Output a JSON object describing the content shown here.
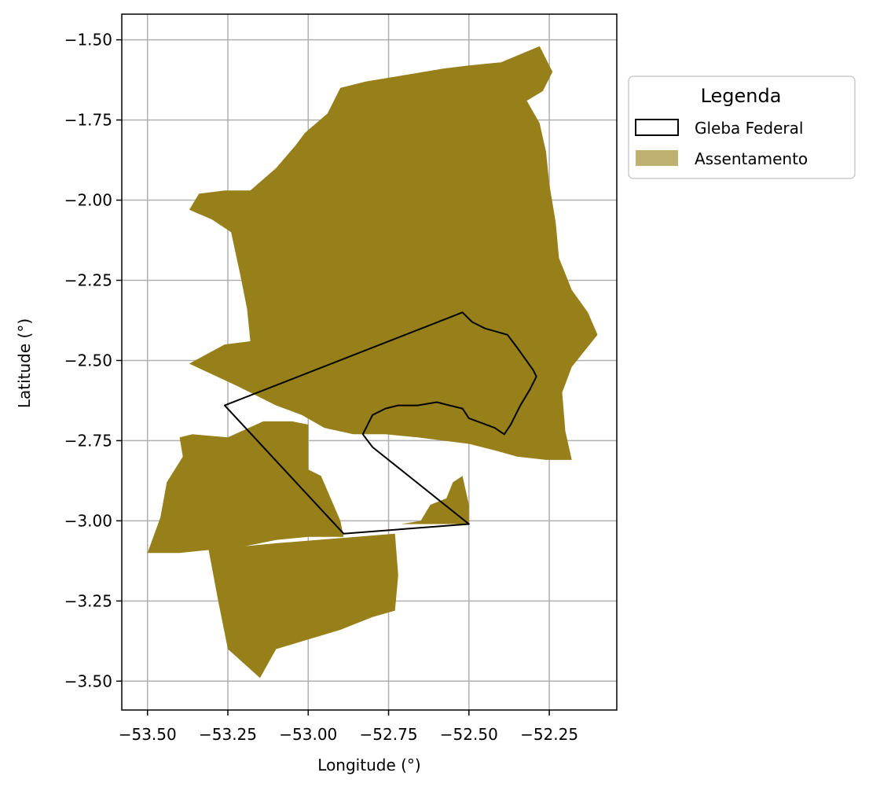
{
  "chart_data": {
    "type": "map",
    "xlabel": "Longitude (°)",
    "ylabel": "Latitude (°)",
    "xlim": [
      -53.58,
      -52.04
    ],
    "ylim": [
      -3.59,
      -1.42
    ],
    "x_ticks": [
      -53.5,
      -53.25,
      -53.0,
      -52.75,
      -52.5,
      -52.25
    ],
    "x_tick_labels": [
      "−53.50",
      "−53.25",
      "−53.00",
      "−52.75",
      "−52.50",
      "−52.25"
    ],
    "y_ticks": [
      -1.5,
      -1.75,
      -2.0,
      -2.25,
      -2.5,
      -2.75,
      -3.0,
      -3.25,
      -3.5
    ],
    "y_tick_labels": [
      "−1.50",
      "−1.75",
      "−2.00",
      "−2.25",
      "−2.50",
      "−2.75",
      "−3.00",
      "−3.25",
      "−3.50"
    ],
    "grid": true,
    "legend": {
      "title": "Legenda",
      "placement": "outside upper-right",
      "entries": [
        {
          "label": "Gleba Federal",
          "style": "outline",
          "color": "#000000"
        },
        {
          "label": "Assentamento",
          "style": "fill",
          "color": "#bfb16f"
        }
      ]
    },
    "colors": {
      "assentamento_fill": "#977f19",
      "gleba_outline": "#000000",
      "grid": "#b0b0b0",
      "legend_swatch": "#bfb16f"
    },
    "layers": {
      "assentamento": [
        [
          [
            -53.37,
            -2.51
          ],
          [
            -53.26,
            -2.45
          ],
          [
            -53.18,
            -2.44
          ],
          [
            -53.19,
            -2.34
          ],
          [
            -53.21,
            -2.24
          ],
          [
            -53.24,
            -2.1
          ],
          [
            -53.3,
            -2.06
          ],
          [
            -53.37,
            -2.03
          ],
          [
            -53.34,
            -1.98
          ],
          [
            -53.26,
            -1.97
          ],
          [
            -53.18,
            -1.97
          ],
          [
            -53.1,
            -1.9
          ],
          [
            -53.04,
            -1.83
          ],
          [
            -53.01,
            -1.79
          ],
          [
            -52.94,
            -1.73
          ],
          [
            -52.9,
            -1.65
          ],
          [
            -52.82,
            -1.63
          ],
          [
            -52.7,
            -1.61
          ],
          [
            -52.58,
            -1.59
          ],
          [
            -52.5,
            -1.58
          ],
          [
            -52.4,
            -1.57
          ],
          [
            -52.28,
            -1.52
          ],
          [
            -52.24,
            -1.6
          ],
          [
            -52.27,
            -1.66
          ],
          [
            -52.32,
            -1.69
          ],
          [
            -52.28,
            -1.76
          ],
          [
            -52.26,
            -1.85
          ],
          [
            -52.25,
            -1.95
          ],
          [
            -52.23,
            -2.07
          ],
          [
            -52.22,
            -2.18
          ],
          [
            -52.18,
            -2.28
          ],
          [
            -52.13,
            -2.35
          ],
          [
            -52.1,
            -2.42
          ],
          [
            -52.18,
            -2.52
          ],
          [
            -52.21,
            -2.6
          ],
          [
            -52.2,
            -2.72
          ],
          [
            -52.18,
            -2.81
          ],
          [
            -52.26,
            -2.81
          ],
          [
            -52.35,
            -2.8
          ],
          [
            -52.42,
            -2.78
          ],
          [
            -52.5,
            -2.76
          ],
          [
            -52.58,
            -2.75
          ],
          [
            -52.66,
            -2.74
          ],
          [
            -52.76,
            -2.73
          ],
          [
            -52.86,
            -2.73
          ],
          [
            -52.95,
            -2.71
          ],
          [
            -53.02,
            -2.67
          ],
          [
            -53.1,
            -2.64
          ],
          [
            -53.22,
            -2.58
          ],
          [
            -53.37,
            -2.51
          ]
        ],
        [
          [
            -53.5,
            -3.1
          ],
          [
            -53.46,
            -2.99
          ],
          [
            -53.44,
            -2.88
          ],
          [
            -53.39,
            -2.8
          ],
          [
            -53.4,
            -2.74
          ],
          [
            -53.36,
            -2.73
          ],
          [
            -53.25,
            -2.74
          ],
          [
            -53.14,
            -2.69
          ],
          [
            -53.05,
            -2.69
          ],
          [
            -53.0,
            -2.7
          ],
          [
            -53.0,
            -2.84
          ],
          [
            -52.96,
            -2.86
          ],
          [
            -52.9,
            -3.0
          ],
          [
            -52.89,
            -3.05
          ],
          [
            -53.0,
            -3.05
          ],
          [
            -53.1,
            -3.06
          ],
          [
            -53.2,
            -3.08
          ],
          [
            -53.3,
            -3.09
          ],
          [
            -53.4,
            -3.1
          ],
          [
            -53.5,
            -3.1
          ]
        ],
        [
          [
            -53.31,
            -3.09
          ],
          [
            -53.1,
            -3.07
          ],
          [
            -52.85,
            -3.05
          ],
          [
            -52.73,
            -3.04
          ],
          [
            -52.72,
            -3.17
          ],
          [
            -52.73,
            -3.28
          ],
          [
            -52.8,
            -3.3
          ],
          [
            -52.9,
            -3.34
          ],
          [
            -53.0,
            -3.37
          ],
          [
            -53.1,
            -3.4
          ],
          [
            -53.15,
            -3.49
          ],
          [
            -53.25,
            -3.4
          ],
          [
            -53.28,
            -3.25
          ],
          [
            -53.31,
            -3.09
          ]
        ],
        [
          [
            -52.76,
            -3.01
          ],
          [
            -52.71,
            -3.01
          ],
          [
            -52.65,
            -3.0
          ],
          [
            -52.62,
            -2.95
          ],
          [
            -52.57,
            -2.93
          ],
          [
            -52.55,
            -2.88
          ],
          [
            -52.52,
            -2.86
          ],
          [
            -52.5,
            -2.95
          ],
          [
            -52.5,
            -3.01
          ],
          [
            -52.58,
            -3.01
          ],
          [
            -52.66,
            -3.01
          ],
          [
            -52.76,
            -3.01
          ]
        ]
      ],
      "gleba_federal": [
        [
          [
            -53.26,
            -2.64
          ],
          [
            -52.52,
            -2.35
          ],
          [
            -52.49,
            -2.38
          ],
          [
            -52.45,
            -2.4
          ],
          [
            -52.38,
            -2.42
          ],
          [
            -52.35,
            -2.46
          ],
          [
            -52.3,
            -2.53
          ],
          [
            -52.29,
            -2.55
          ],
          [
            -52.31,
            -2.59
          ],
          [
            -52.34,
            -2.64
          ],
          [
            -52.37,
            -2.7
          ],
          [
            -52.39,
            -2.73
          ],
          [
            -52.42,
            -2.71
          ],
          [
            -52.5,
            -2.68
          ],
          [
            -52.52,
            -2.65
          ],
          [
            -52.56,
            -2.64
          ],
          [
            -52.6,
            -2.63
          ],
          [
            -52.66,
            -2.64
          ],
          [
            -52.72,
            -2.64
          ],
          [
            -52.76,
            -2.65
          ],
          [
            -52.8,
            -2.67
          ],
          [
            -52.83,
            -2.73
          ],
          [
            -52.8,
            -2.77
          ],
          [
            -52.5,
            -3.01
          ],
          [
            -52.89,
            -3.04
          ],
          [
            -53.26,
            -2.64
          ]
        ]
      ]
    }
  }
}
